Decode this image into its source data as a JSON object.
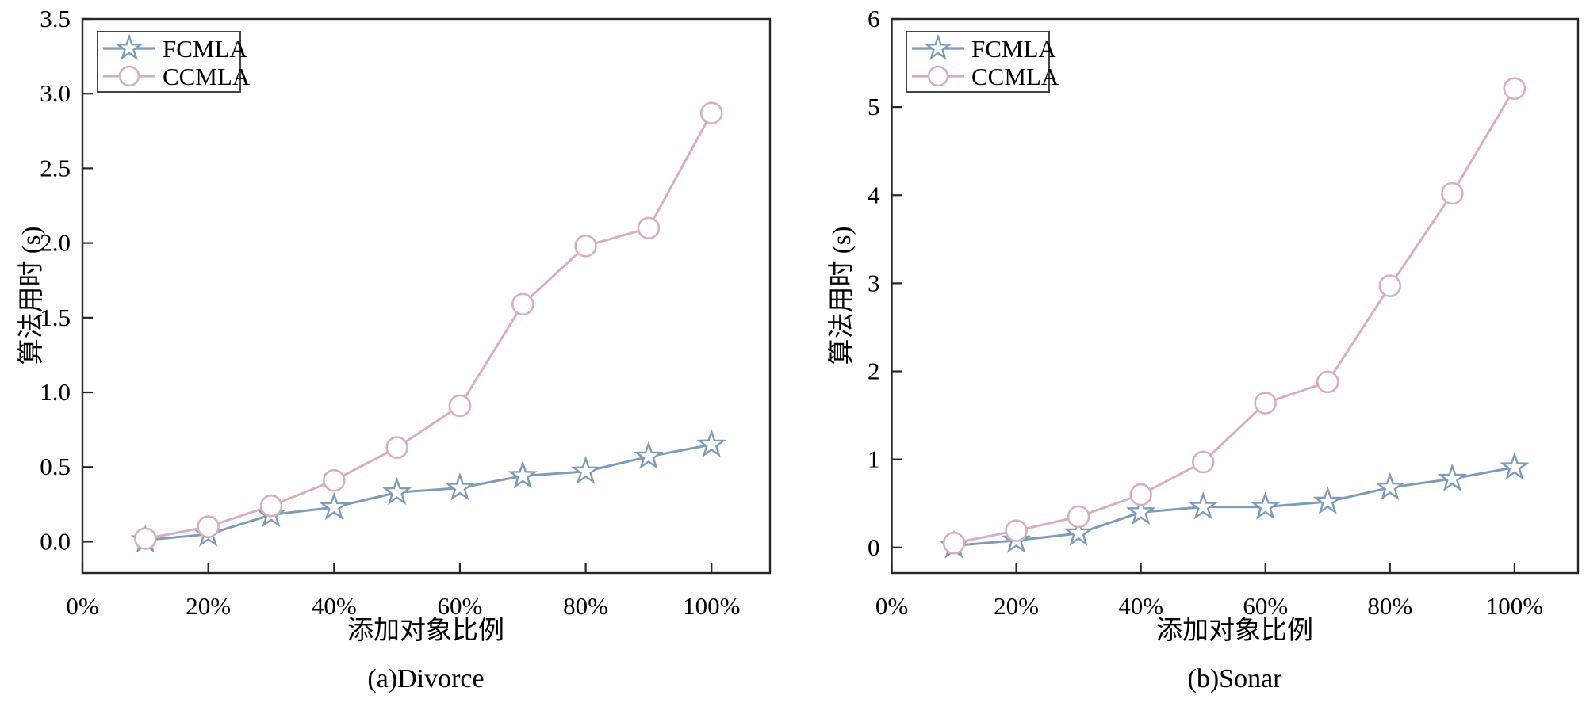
{
  "colors": {
    "fcmla": "#7d9cbd",
    "ccmla": "#dcaebd",
    "axis": "#262626",
    "legend_border": "#444444",
    "text": "#000000",
    "marker_fill": "#ffffff"
  },
  "chart_data": [
    {
      "type": "line",
      "caption": "(a)Divorce",
      "xlabel": "添加对象比例",
      "ylabel": "算法用时 (s)",
      "x_pct": [
        10,
        20,
        30,
        40,
        50,
        60,
        70,
        80,
        90,
        100
      ],
      "series": [
        {
          "name": "FCMLA",
          "marker": "star",
          "color_key": "fcmla",
          "values": [
            0.01,
            0.05,
            0.18,
            0.23,
            0.33,
            0.36,
            0.44,
            0.47,
            0.57,
            0.65
          ]
        },
        {
          "name": "CCMLA",
          "marker": "circle",
          "color_key": "ccmla",
          "values": [
            0.02,
            0.1,
            0.24,
            0.41,
            0.63,
            0.91,
            1.59,
            1.98,
            2.1,
            2.87
          ]
        }
      ],
      "x_tick_values": [
        0,
        20,
        40,
        60,
        80,
        100
      ],
      "x_tick_labels": [
        "0%",
        "20%",
        "40%",
        "60%",
        "80%",
        "100%"
      ],
      "y_tick_values": [
        0.0,
        0.5,
        1.0,
        1.5,
        2.0,
        2.5,
        3.0,
        3.5
      ],
      "y_tick_labels": [
        "0.0",
        "0.5",
        "1.0",
        "1.5",
        "2.0",
        "2.5",
        "3.0",
        "3.5"
      ],
      "xlim_pct": [
        0,
        109.3
      ],
      "ylim": [
        -0.21,
        3.5
      ],
      "grid": false,
      "legend_position": "upper-left",
      "legend_labels": [
        "FCMLA",
        "CCMLA"
      ]
    },
    {
      "type": "line",
      "caption": "(b)Sonar",
      "xlabel": "添加对象比例",
      "ylabel": "算法用时 (s)",
      "x_pct": [
        10,
        20,
        30,
        40,
        50,
        60,
        70,
        80,
        90,
        100
      ],
      "series": [
        {
          "name": "FCMLA",
          "marker": "star",
          "color_key": "fcmla",
          "values": [
            0.02,
            0.08,
            0.16,
            0.4,
            0.46,
            0.46,
            0.52,
            0.68,
            0.78,
            0.91
          ]
        },
        {
          "name": "CCMLA",
          "marker": "circle",
          "color_key": "ccmla",
          "values": [
            0.05,
            0.19,
            0.35,
            0.6,
            0.97,
            1.64,
            1.88,
            2.97,
            4.02,
            5.21
          ]
        }
      ],
      "x_tick_values": [
        0,
        20,
        40,
        60,
        80,
        100
      ],
      "x_tick_labels": [
        "0%",
        "20%",
        "40%",
        "60%",
        "80%",
        "100%"
      ],
      "y_tick_values": [
        0,
        1,
        2,
        3,
        4,
        5,
        6
      ],
      "y_tick_labels": [
        "0",
        "1",
        "2",
        "3",
        "4",
        "5",
        "6"
      ],
      "xlim_pct": [
        0,
        110.2
      ],
      "ylim": [
        -0.29,
        6.0
      ],
      "grid": false,
      "legend_position": "upper-left",
      "legend_labels": [
        "FCMLA",
        "CCMLA"
      ]
    }
  ]
}
